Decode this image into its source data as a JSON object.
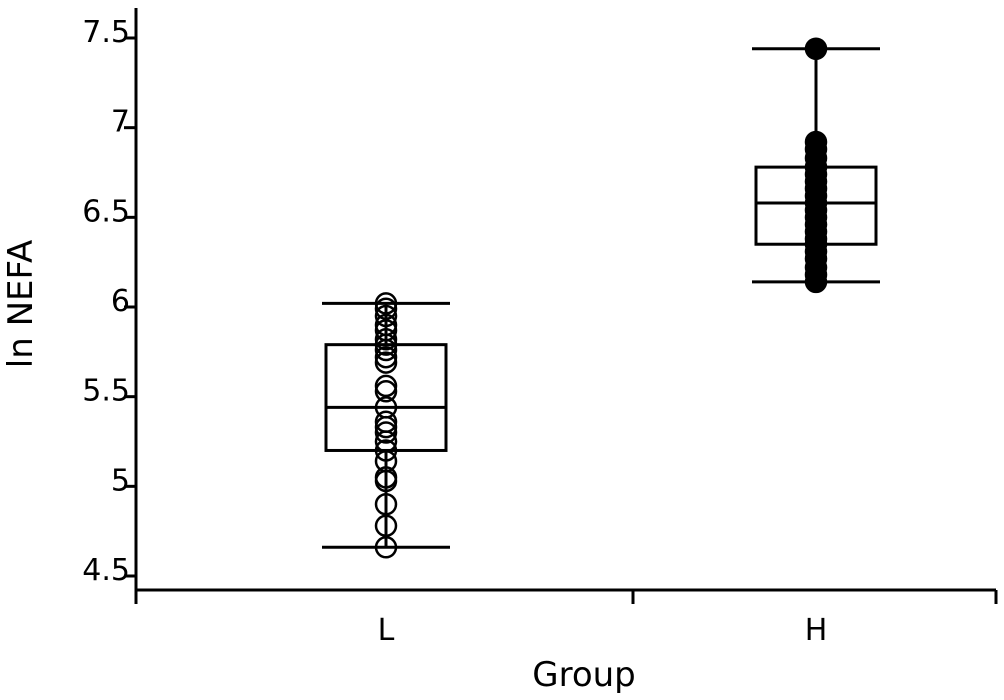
{
  "chart_data": {
    "type": "box",
    "xlabel": "Group",
    "ylabel": "ln NEFA",
    "ylim": [
      4.45,
      7.65
    ],
    "yticks": [
      4.5,
      5,
      5.5,
      6,
      6.5,
      7,
      7.5
    ],
    "ytick_labels": [
      "4.5",
      "5",
      "5.5",
      "6",
      "6.5",
      "7",
      "7.5"
    ],
    "categories": [
      "L",
      "H"
    ],
    "groups": [
      {
        "name": "L",
        "marker": "open-circle",
        "whisker_low": 4.66,
        "q1": 5.2,
        "median": 5.44,
        "q3": 5.79,
        "whisker_high": 6.02,
        "points": [
          4.66,
          4.78,
          4.9,
          5.03,
          5.05,
          5.14,
          5.2,
          5.25,
          5.3,
          5.33,
          5.36,
          5.44,
          5.53,
          5.56,
          5.69,
          5.72,
          5.76,
          5.79,
          5.82,
          5.87,
          5.9,
          5.95,
          5.99,
          6.02
        ]
      },
      {
        "name": "H",
        "marker": "filled-circle",
        "whisker_low": 6.14,
        "q1": 6.35,
        "median": 6.58,
        "q3": 6.78,
        "whisker_high": 7.44,
        "points": [
          6.14,
          6.18,
          6.22,
          6.27,
          6.31,
          6.35,
          6.38,
          6.42,
          6.46,
          6.5,
          6.54,
          6.58,
          6.62,
          6.66,
          6.7,
          6.74,
          6.78,
          6.83,
          6.88,
          6.92,
          7.44
        ]
      }
    ]
  }
}
